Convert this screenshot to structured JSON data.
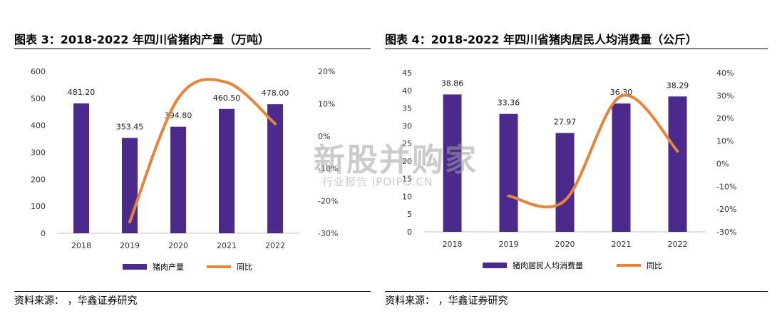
{
  "colors": {
    "bar": "#4B2A8C",
    "line": "#E8833A",
    "axis": "#bfbfbf"
  },
  "left": {
    "title": "图表 3：2018-2022 年四川省猪肉产量（万吨）",
    "source": "资料来源：      ，华鑫证券研究"
  },
  "right": {
    "title": "图表 4：2018-2022 年四川省猪肉居民人均消费量（公斤）",
    "source": "资料来源：      ，华鑫证券研究"
  },
  "watermark": {
    "main": "新股并购家",
    "sub": "行业报告 IPOIPO.CN"
  },
  "chart_data": [
    {
      "type": "bar",
      "categories": [
        "2018",
        "2019",
        "2020",
        "2021",
        "2022"
      ],
      "series": [
        {
          "name": "猪肉产量",
          "type": "bar",
          "axis": "left",
          "values": [
            481.2,
            353.45,
            394.8,
            460.5,
            478.0
          ],
          "labels": [
            "481.20",
            "353.45",
            "394.80",
            "460.50",
            "478.00"
          ]
        },
        {
          "name": "同比",
          "type": "line",
          "axis": "right",
          "values": [
            null,
            -26.5,
            11.7,
            16.6,
            3.8
          ]
        }
      ],
      "ylim": [
        0,
        600
      ],
      "yticks": [
        "0",
        "100",
        "200",
        "300",
        "400",
        "500",
        "600"
      ],
      "y2lim": [
        -30,
        20
      ],
      "y2ticks": [
        "-30%",
        "-20%",
        "-10%",
        "0%",
        "10%",
        "20%"
      ],
      "legend": [
        "猪肉产量",
        "同比"
      ],
      "legend_position": "bottom",
      "grid": false
    },
    {
      "type": "bar",
      "categories": [
        "2018",
        "2019",
        "2020",
        "2021",
        "2022"
      ],
      "series": [
        {
          "name": "猪肉居民人均消费量",
          "type": "bar",
          "axis": "left",
          "values": [
            38.86,
            33.36,
            27.97,
            36.3,
            38.29
          ],
          "labels": [
            "38.86",
            "33.36",
            "27.97",
            "36.30",
            "38.29"
          ]
        },
        {
          "name": "同比",
          "type": "line",
          "axis": "right",
          "values": [
            null,
            -14.2,
            -16.2,
            29.8,
            5.5
          ]
        }
      ],
      "ylim": [
        0,
        45
      ],
      "yticks": [
        "0",
        "5",
        "10",
        "15",
        "20",
        "25",
        "30",
        "35",
        "40",
        "45"
      ],
      "y2lim": [
        -30,
        40
      ],
      "y2ticks": [
        "-30%",
        "-20%",
        "-10%",
        "0%",
        "10%",
        "20%",
        "30%",
        "40%"
      ],
      "legend": [
        "猪肉居民人均消费量",
        "同比"
      ],
      "legend_position": "bottom",
      "grid": false
    }
  ]
}
